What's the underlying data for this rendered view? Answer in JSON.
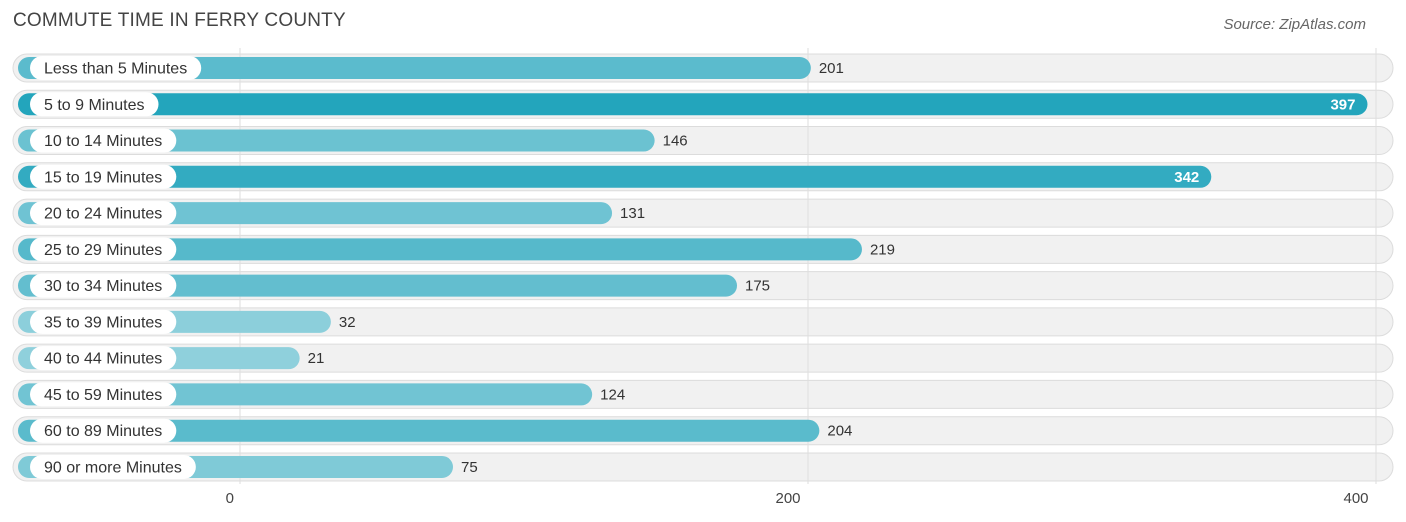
{
  "chart_data": {
    "type": "bar",
    "orientation": "horizontal",
    "title": "COMMUTE TIME IN FERRY COUNTY",
    "source": "Source: ZipAtlas.com",
    "categories": [
      "Less than 5 Minutes",
      "5 to 9 Minutes",
      "10 to 14 Minutes",
      "15 to 19 Minutes",
      "20 to 24 Minutes",
      "25 to 29 Minutes",
      "30 to 34 Minutes",
      "35 to 39 Minutes",
      "40 to 44 Minutes",
      "45 to 59 Minutes",
      "60 to 89 Minutes",
      "90 or more Minutes"
    ],
    "values": [
      201,
      397,
      146,
      342,
      131,
      219,
      175,
      32,
      21,
      124,
      204,
      75
    ],
    "value_labels": [
      "201",
      "397",
      "146",
      "342",
      "131",
      "219",
      "175",
      "32",
      "21",
      "124",
      "204",
      "75"
    ],
    "xlim": [
      0,
      400
    ],
    "xticks": [
      0,
      200,
      400
    ],
    "xtick_labels": [
      "0",
      "200",
      "400"
    ],
    "grid": true,
    "colors": {
      "bar_strong": "#23a5bc",
      "bar_light": "#8fd0dc",
      "row_background": "#f1f1f1"
    }
  }
}
